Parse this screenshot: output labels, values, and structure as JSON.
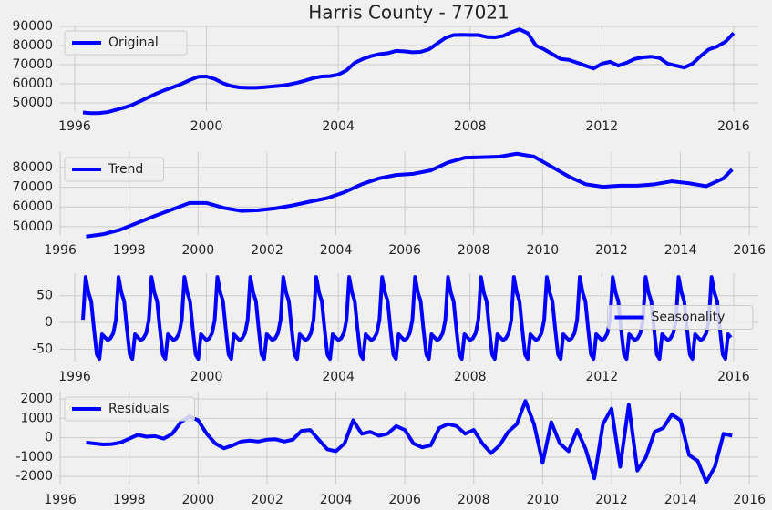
{
  "chart_data": [
    {
      "type": "line",
      "title": "Harris County - 77021",
      "grid": true,
      "legend": "upper left",
      "xlim": [
        1995.53,
        2016.75
      ],
      "xticks": [
        1996,
        2000,
        2004,
        2008,
        2012,
        2016
      ],
      "ylim": [
        45700,
        90500
      ],
      "yticks": [
        50000,
        60000,
        70000,
        80000,
        90000
      ],
      "x": [
        1996.25,
        1996.5,
        1996.75,
        1997,
        1997.25,
        1997.5,
        1997.75,
        1998,
        1998.25,
        1998.5,
        1998.75,
        1999,
        1999.25,
        1999.5,
        1999.75,
        2000,
        2000.25,
        2000.5,
        2000.75,
        2001,
        2001.25,
        2001.5,
        2001.75,
        2002,
        2002.25,
        2002.5,
        2002.75,
        2003,
        2003.25,
        2003.5,
        2003.75,
        2004,
        2004.25,
        2004.5,
        2004.75,
        2005,
        2005.25,
        2005.5,
        2005.75,
        2006,
        2006.25,
        2006.5,
        2006.75,
        2007,
        2007.25,
        2007.5,
        2007.75,
        2008,
        2008.25,
        2008.5,
        2008.75,
        2009,
        2009.25,
        2009.5,
        2009.75,
        2010,
        2010.25,
        2010.5,
        2010.75,
        2011,
        2011.25,
        2011.5,
        2011.75,
        2012,
        2012.25,
        2012.5,
        2012.75,
        2013,
        2013.25,
        2013.5,
        2013.75,
        2014,
        2014.25,
        2014.5,
        2014.75,
        2015,
        2015.25,
        2015.5,
        2015.75,
        2016
      ],
      "series": [
        {
          "name": "Original",
          "color": "#0000ff",
          "values": [
            45000,
            44600,
            44700,
            45200,
            46300,
            47500,
            49000,
            51000,
            53000,
            55000,
            56800,
            58300,
            60000,
            62000,
            63700,
            63800,
            62500,
            60300,
            58800,
            58100,
            57900,
            57900,
            58200,
            58600,
            59000,
            59600,
            60500,
            61700,
            63000,
            63800,
            64000,
            64800,
            67000,
            71000,
            73000,
            74500,
            75500,
            76000,
            77200,
            77000,
            76500,
            76700,
            78000,
            81000,
            84000,
            85500,
            85600,
            85500,
            85500,
            84500,
            84300,
            85000,
            87000,
            88500,
            86500,
            80000,
            78000,
            75500,
            73000,
            72500,
            71000,
            69500,
            68000,
            70500,
            71500,
            69500,
            71000,
            73000,
            73800,
            74200,
            73500,
            70500,
            69500,
            68500,
            70500,
            74500,
            78000,
            79500,
            82000,
            86500
          ]
        }
      ]
    },
    {
      "type": "line",
      "grid": true,
      "legend": "upper left",
      "xlim": [
        1995.97,
        2016.26
      ],
      "xticks": [
        1996,
        1998,
        2000,
        2002,
        2004,
        2006,
        2008,
        2010,
        2012,
        2014,
        2016
      ],
      "ylim": [
        45800,
        87800
      ],
      "yticks": [
        50000,
        60000,
        70000,
        80000
      ],
      "x": [
        1996.75,
        1997.25,
        1997.75,
        1998.25,
        1998.75,
        1999.25,
        1999.75,
        2000.25,
        2000.75,
        2001.25,
        2001.75,
        2002.25,
        2002.75,
        2003.25,
        2003.75,
        2004.25,
        2004.75,
        2005.25,
        2005.75,
        2006.25,
        2006.75,
        2007.25,
        2007.75,
        2008.25,
        2008.75,
        2009.25,
        2009.75,
        2010.25,
        2010.75,
        2011.25,
        2011.75,
        2012.25,
        2012.75,
        2013.25,
        2013.75,
        2014.25,
        2014.75,
        2015.25,
        2015.5
      ],
      "series": [
        {
          "name": "Trend",
          "color": "#0000ff",
          "values": [
            45000,
            46200,
            48500,
            52000,
            55500,
            58700,
            62000,
            62000,
            59500,
            58000,
            58300,
            59300,
            60800,
            62700,
            64500,
            67500,
            71500,
            74500,
            76200,
            76800,
            78500,
            82500,
            85000,
            85200,
            85500,
            87000,
            85500,
            80500,
            75500,
            71500,
            70200,
            70800,
            70800,
            71500,
            73000,
            72000,
            70500,
            74500,
            79000
          ]
        }
      ]
    },
    {
      "type": "line",
      "grid": true,
      "legend": "center right",
      "xlim": [
        1995.53,
        2016.75
      ],
      "xticks": [
        1996,
        2000,
        2004,
        2008,
        2012,
        2016
      ],
      "ylim": [
        -73,
        92
      ],
      "yticks": [
        -50,
        0,
        50
      ],
      "x": [
        1996.25,
        1996.33,
        1996.42,
        1996.5,
        1996.58,
        1996.67,
        1996.75,
        1996.83,
        1996.92,
        1997,
        1997.08,
        1997.17,
        1997.25,
        1997.33,
        1997.42,
        1997.5,
        1997.58,
        1997.67,
        1997.75,
        1997.83,
        1997.92,
        1998,
        1998.08,
        1998.17,
        1998.25,
        1998.33,
        1998.42,
        1998.5,
        1998.58,
        1998.67,
        1998.75,
        1998.83,
        1998.92,
        1999,
        1999.08,
        1999.17,
        1999.25,
        1999.33,
        1999.42,
        1999.5,
        1999.58,
        1999.67,
        1999.75,
        1999.83,
        1999.92,
        2000,
        2000.08,
        2000.17,
        2000.25,
        2000.33,
        2000.42,
        2000.5,
        2000.58,
        2000.67,
        2000.75,
        2000.83,
        2000.92,
        2001,
        2001.08,
        2001.17,
        2001.25,
        2001.33,
        2001.42,
        2001.5,
        2001.58,
        2001.67,
        2001.75,
        2001.83,
        2001.92,
        2002,
        2002.08,
        2002.17,
        2002.25,
        2002.33,
        2002.42,
        2002.5,
        2002.58,
        2002.67,
        2002.75,
        2002.83,
        2002.92,
        2003,
        2003.08,
        2003.17,
        2003.25,
        2003.33,
        2003.42,
        2003.5,
        2003.58,
        2003.67,
        2003.75,
        2003.83,
        2003.92,
        2004,
        2004.08,
        2004.17,
        2004.25,
        2004.33,
        2004.42,
        2004.5,
        2004.58,
        2004.67,
        2004.75,
        2004.83,
        2004.92,
        2005,
        2005.08,
        2005.17,
        2005.25,
        2005.33,
        2005.42,
        2005.5,
        2005.58,
        2005.67,
        2005.75,
        2005.83,
        2005.92,
        2006,
        2006.08,
        2006.17,
        2006.25,
        2006.33,
        2006.42,
        2006.5,
        2006.58,
        2006.67,
        2006.75,
        2006.83,
        2006.92,
        2007,
        2007.08,
        2007.17,
        2007.25,
        2007.33,
        2007.42,
        2007.5,
        2007.58,
        2007.67,
        2007.75,
        2007.83,
        2007.92,
        2008,
        2008.08,
        2008.17,
        2008.25,
        2008.33,
        2008.42,
        2008.5,
        2008.58,
        2008.67,
        2008.75,
        2008.83,
        2008.92,
        2009,
        2009.08,
        2009.17,
        2009.25,
        2009.33,
        2009.42,
        2009.5,
        2009.58,
        2009.67,
        2009.75,
        2009.83,
        2009.92,
        2010,
        2010.08,
        2010.17,
        2010.25,
        2010.33,
        2010.42,
        2010.5,
        2010.58,
        2010.67,
        2010.75,
        2010.83,
        2010.92,
        2011,
        2011.08,
        2011.17,
        2011.25,
        2011.33,
        2011.42,
        2011.5,
        2011.58,
        2011.67,
        2011.75,
        2011.83,
        2011.92,
        2012,
        2012.08,
        2012.17,
        2012.25,
        2012.33,
        2012.42,
        2012.5,
        2012.58,
        2012.67,
        2012.75,
        2012.83,
        2012.92,
        2013,
        2013.08,
        2013.17,
        2013.25,
        2013.33,
        2013.42,
        2013.5,
        2013.58,
        2013.67,
        2013.75,
        2013.83,
        2013.92,
        2014,
        2014.08,
        2014.17,
        2014.25,
        2014.33,
        2014.42,
        2014.5,
        2014.58,
        2014.67,
        2014.75,
        2014.83,
        2014.92,
        2015,
        2015.08,
        2015.17,
        2015.25,
        2015.33,
        2015.42,
        2015.5,
        2015.58,
        2015.67,
        2015.75,
        2015.83,
        2015.92
      ],
      "series": [
        {
          "name": "Seasonality",
          "color": "#0000ff",
          "values": [
            5,
            85,
            55,
            40,
            -10,
            -60,
            -68,
            -22,
            -28,
            -33,
            -30,
            -20,
            5,
            85,
            55,
            40,
            -10,
            -60,
            -68,
            -22,
            -28,
            -33,
            -30,
            -20,
            5,
            85,
            55,
            40,
            -10,
            -60,
            -68,
            -22,
            -28,
            -33,
            -30,
            -20,
            5,
            85,
            55,
            40,
            -10,
            -60,
            -68,
            -22,
            -28,
            -33,
            -30,
            -20,
            5,
            85,
            55,
            40,
            -10,
            -60,
            -68,
            -22,
            -28,
            -33,
            -30,
            -20,
            5,
            85,
            55,
            40,
            -10,
            -60,
            -68,
            -22,
            -28,
            -33,
            -30,
            -20,
            5,
            85,
            55,
            40,
            -10,
            -60,
            -68,
            -22,
            -28,
            -33,
            -30,
            -20,
            5,
            85,
            55,
            40,
            -10,
            -60,
            -68,
            -22,
            -28,
            -33,
            -30,
            -20,
            5,
            85,
            55,
            40,
            -10,
            -60,
            -68,
            -22,
            -28,
            -33,
            -30,
            -20,
            5,
            85,
            55,
            40,
            -10,
            -60,
            -68,
            -22,
            -28,
            -33,
            -30,
            -20,
            5,
            85,
            55,
            40,
            -10,
            -60,
            -68,
            -22,
            -28,
            -33,
            -30,
            -20,
            5,
            85,
            55,
            40,
            -10,
            -60,
            -68,
            -22,
            -28,
            -33,
            -30,
            -20,
            5,
            85,
            55,
            40,
            -10,
            -60,
            -68,
            -22,
            -28,
            -33,
            -30,
            -20,
            5,
            85,
            55,
            40,
            -10,
            -60,
            -68,
            -22,
            -28,
            -33,
            -30,
            -20,
            5,
            85,
            55,
            40,
            -10,
            -60,
            -68,
            -22,
            -28,
            -33,
            -30,
            -20,
            5,
            85,
            55,
            40,
            -10,
            -60,
            -68,
            -22,
            -28,
            -33,
            -30,
            -20,
            5,
            85,
            55,
            40,
            -10,
            -60,
            -68,
            -22,
            -28,
            -33,
            -30,
            -20,
            5,
            85,
            55,
            40,
            -10,
            -60,
            -68,
            -22,
            -28,
            -33,
            -30,
            -20,
            5,
            85,
            55,
            40,
            -10,
            -60,
            -68,
            -22,
            -28,
            -33,
            -30,
            -20,
            5,
            85,
            55,
            40,
            -10,
            -60,
            -68,
            -22,
            -28
          ]
        }
      ]
    },
    {
      "type": "line",
      "grid": true,
      "legend": "upper left",
      "xlim": [
        1995.97,
        2016.26
      ],
      "xticks": [
        1996,
        1998,
        2000,
        2002,
        2004,
        2006,
        2008,
        2010,
        2012,
        2014,
        2016
      ],
      "ylim": [
        -2420,
        2380
      ],
      "yticks": [
        -2000,
        -1000,
        0,
        1000,
        2000
      ],
      "x": [
        1996.75,
        1997,
        1997.25,
        1997.5,
        1997.75,
        1998,
        1998.25,
        1998.5,
        1998.75,
        1999,
        1999.25,
        1999.5,
        1999.75,
        2000,
        2000.25,
        2000.5,
        2000.75,
        2001,
        2001.25,
        2001.5,
        2001.75,
        2002,
        2002.25,
        2002.5,
        2002.75,
        2003,
        2003.25,
        2003.5,
        2003.75,
        2004,
        2004.25,
        2004.5,
        2004.75,
        2005,
        2005.25,
        2005.5,
        2005.75,
        2006,
        2006.25,
        2006.5,
        2006.75,
        2007,
        2007.25,
        2007.5,
        2007.75,
        2008,
        2008.25,
        2008.5,
        2008.75,
        2009,
        2009.25,
        2009.5,
        2009.75,
        2010,
        2010.25,
        2010.5,
        2010.75,
        2011,
        2011.25,
        2011.5,
        2011.75,
        2012,
        2012.25,
        2012.5,
        2012.75,
        2013,
        2013.25,
        2013.5,
        2013.75,
        2014,
        2014.25,
        2014.5,
        2014.75,
        2015,
        2015.25,
        2015.5
      ],
      "series": [
        {
          "name": "Residuals",
          "color": "#0000ff",
          "values": [
            -250,
            -300,
            -350,
            -330,
            -250,
            -50,
            150,
            50,
            80,
            -50,
            200,
            800,
            1100,
            900,
            200,
            -300,
            -550,
            -400,
            -200,
            -150,
            -200,
            -100,
            -80,
            -200,
            -100,
            350,
            400,
            -100,
            -600,
            -700,
            -300,
            900,
            200,
            300,
            100,
            200,
            600,
            400,
            -300,
            -500,
            -400,
            500,
            700,
            600,
            200,
            400,
            -300,
            -800,
            -400,
            300,
            700,
            1900,
            700,
            -1300,
            800,
            -300,
            -700,
            400,
            -600,
            -2100,
            700,
            1500,
            -1500,
            1700,
            -1700,
            -1000,
            300,
            500,
            1200,
            900,
            -900,
            -1200,
            -2300,
            -1500,
            200,
            100
          ]
        }
      ]
    }
  ]
}
